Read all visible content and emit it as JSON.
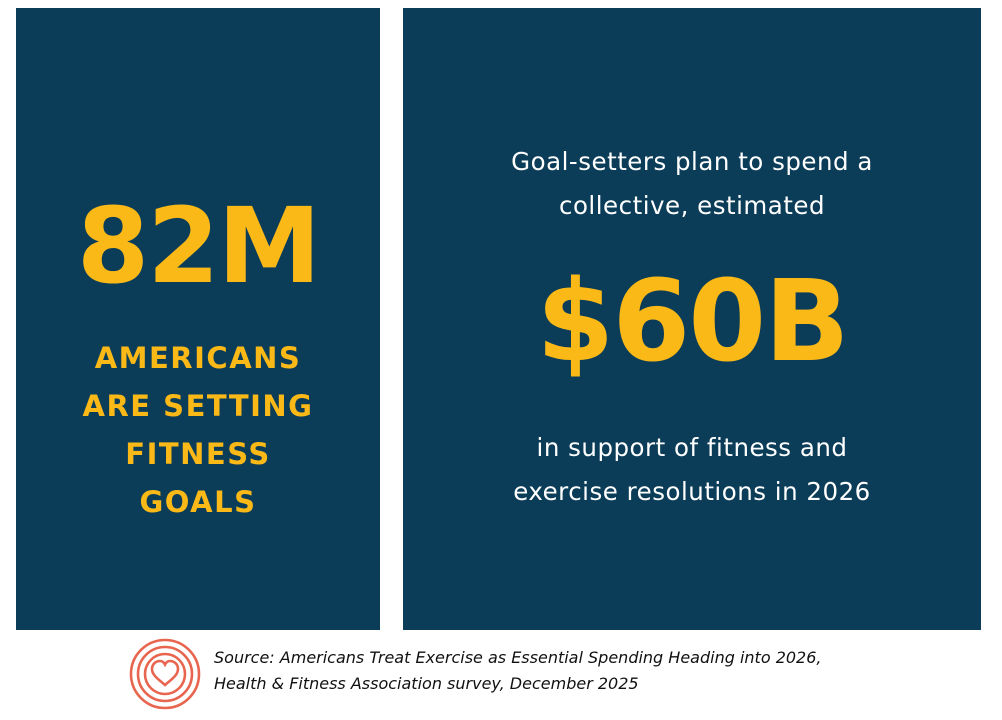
{
  "left_panel": {
    "stat": "82M",
    "caption_lines": [
      "AMERICANS",
      "ARE SETTING",
      "FITNESS",
      "GOALS"
    ]
  },
  "right_panel": {
    "intro_lines": [
      "Goal-setters plan to spend a",
      "collective, estimated"
    ],
    "stat": "$60B",
    "outro_lines": [
      "in support of fitness and",
      "exercise resolutions in 2026"
    ]
  },
  "source": {
    "icon": "heart-target-icon",
    "lines": [
      "Source: Americans Treat Exercise as Essential Spending Heading into 2026,",
      "Health & Fitness Association survey, December 2025"
    ]
  },
  "colors": {
    "panel_bg": "#0b3d59",
    "accent": "#fbb917",
    "body_text": "#ffffff",
    "icon": "#e8664f"
  }
}
